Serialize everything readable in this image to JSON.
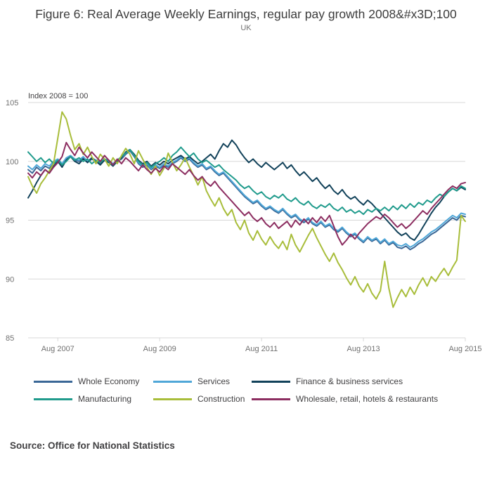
{
  "source": "Source: Office for National Statistics",
  "colors": {
    "grid": "#d8d8d8",
    "tick_text": "#707070",
    "note_text": "#414042"
  },
  "chart_data": {
    "type": "line",
    "title": "Figure 6: Real Average Weekly Earnings, regular pay growth 2008&#x3D;100",
    "subtitle": "UK",
    "unit_label": "Index 2008 = 100",
    "x_range": {
      "start": "Jan 2007",
      "end": "Aug 2015",
      "frequency": "monthly"
    },
    "x_tick_labels": [
      "Aug 2007",
      "Aug 2009",
      "Aug 2011",
      "Aug 2013",
      "Aug 2015"
    ],
    "x_tick_month_indices": [
      7,
      31,
      55,
      79,
      103
    ],
    "y_ticks": [
      85,
      90,
      95,
      100,
      105
    ],
    "ylim": [
      85,
      105
    ],
    "grid": "horizontal",
    "legend_position": "bottom",
    "series": [
      {
        "name": "Whole Economy",
        "color": "#3a6796",
        "values": [
          99.3,
          99.0,
          99.5,
          99.2,
          99.6,
          99.4,
          99.8,
          100.1,
          99.7,
          100.2,
          100.4,
          100.1,
          100.0,
          100.3,
          99.9,
          100.2,
          100.0,
          99.8,
          100.1,
          100.0,
          99.7,
          100.0,
          100.2,
          100.6,
          100.9,
          100.4,
          99.8,
          99.5,
          99.7,
          99.3,
          99.6,
          99.4,
          99.7,
          99.5,
          99.8,
          100.0,
          100.3,
          100.0,
          100.2,
          99.8,
          99.5,
          99.7,
          99.3,
          99.5,
          99.1,
          98.8,
          99.0,
          98.6,
          98.2,
          97.8,
          97.4,
          97.0,
          96.7,
          96.4,
          96.6,
          96.2,
          95.9,
          96.1,
          95.8,
          95.6,
          95.9,
          95.5,
          95.2,
          95.4,
          95.0,
          94.8,
          95.1,
          94.7,
          94.5,
          94.8,
          94.4,
          94.6,
          94.2,
          94.0,
          94.3,
          93.9,
          93.6,
          93.8,
          93.4,
          93.1,
          93.5,
          93.2,
          93.4,
          93.0,
          93.3,
          92.9,
          93.1,
          92.7,
          92.6,
          92.8,
          92.5,
          92.7,
          93.0,
          93.2,
          93.5,
          93.8,
          94.0,
          94.3,
          94.6,
          94.9,
          95.2,
          95.0,
          95.4,
          95.3
        ]
      },
      {
        "name": "Services",
        "color": "#4fa7d8",
        "values": [
          99.6,
          99.3,
          99.7,
          99.4,
          99.8,
          99.6,
          100.0,
          100.2,
          99.8,
          100.3,
          100.5,
          100.2,
          100.1,
          100.4,
          100.0,
          100.3,
          100.1,
          99.9,
          100.2,
          100.1,
          99.8,
          100.1,
          100.3,
          100.7,
          101.0,
          100.5,
          99.9,
          99.6,
          99.8,
          99.4,
          99.7,
          99.5,
          99.8,
          99.6,
          99.9,
          100.1,
          100.4,
          100.1,
          100.3,
          99.9,
          99.6,
          99.8,
          99.4,
          99.6,
          99.2,
          98.9,
          99.1,
          98.7,
          98.3,
          97.9,
          97.5,
          97.1,
          96.8,
          96.5,
          96.7,
          96.3,
          96.0,
          96.2,
          95.9,
          95.7,
          96.0,
          95.6,
          95.3,
          95.5,
          95.1,
          94.9,
          95.2,
          94.8,
          94.6,
          94.9,
          94.5,
          94.7,
          94.3,
          94.1,
          94.4,
          94.0,
          93.7,
          93.9,
          93.5,
          93.2,
          93.6,
          93.3,
          93.5,
          93.1,
          93.4,
          93.0,
          93.2,
          92.9,
          92.8,
          93.0,
          92.7,
          92.9,
          93.2,
          93.4,
          93.7,
          94.0,
          94.2,
          94.5,
          94.8,
          95.1,
          95.4,
          95.2,
          95.6,
          95.5
        ]
      },
      {
        "name": "Finance & business services",
        "color": "#12425a",
        "values": [
          96.9,
          97.5,
          98.2,
          98.8,
          99.3,
          99.0,
          99.6,
          100.0,
          99.5,
          100.1,
          100.4,
          100.0,
          99.8,
          100.2,
          99.9,
          100.3,
          100.0,
          99.7,
          100.1,
          99.9,
          99.6,
          100.0,
          100.3,
          100.8,
          101.0,
          100.6,
          100.1,
          99.8,
          100.0,
          99.6,
          99.9,
          99.7,
          100.0,
          99.8,
          100.1,
          100.3,
          100.5,
          100.2,
          100.4,
          100.1,
          99.8,
          100.0,
          100.3,
          100.6,
          100.2,
          100.9,
          101.5,
          101.2,
          101.8,
          101.4,
          100.8,
          100.3,
          99.9,
          100.2,
          99.8,
          99.5,
          99.9,
          99.6,
          99.3,
          99.6,
          99.9,
          99.4,
          99.7,
          99.2,
          98.8,
          99.1,
          98.7,
          98.3,
          98.6,
          98.1,
          97.7,
          98.0,
          97.5,
          97.2,
          97.6,
          97.1,
          96.8,
          97.0,
          96.6,
          96.3,
          96.7,
          96.4,
          96.0,
          95.6,
          95.2,
          94.8,
          94.4,
          94.0,
          93.7,
          93.9,
          93.5,
          93.3,
          93.8,
          94.4,
          95.0,
          95.6,
          96.1,
          96.5,
          97.0,
          97.4,
          97.7,
          97.5,
          97.8,
          97.6
        ]
      },
      {
        "name": "Manufacturing",
        "color": "#209b8c",
        "values": [
          100.8,
          100.4,
          100.0,
          100.3,
          99.9,
          100.2,
          99.8,
          100.1,
          99.7,
          100.0,
          100.4,
          100.1,
          100.3,
          100.0,
          100.2,
          99.8,
          100.1,
          99.9,
          100.2,
          100.0,
          99.7,
          100.1,
          100.4,
          100.7,
          101.0,
          100.5,
          100.0,
          99.7,
          99.9,
          99.5,
          99.8,
          100.0,
          100.3,
          100.0,
          100.5,
          100.8,
          101.2,
          100.8,
          100.4,
          100.7,
          100.2,
          99.9,
          100.1,
          99.8,
          99.5,
          99.7,
          99.3,
          99.0,
          98.7,
          98.4,
          98.0,
          97.7,
          97.9,
          97.5,
          97.2,
          97.4,
          97.0,
          96.8,
          97.1,
          96.9,
          97.2,
          96.8,
          96.6,
          96.9,
          96.5,
          96.3,
          96.6,
          96.2,
          96.0,
          96.3,
          96.1,
          96.4,
          96.0,
          95.8,
          96.1,
          95.7,
          95.9,
          95.6,
          95.8,
          95.5,
          95.9,
          95.7,
          96.0,
          95.8,
          96.1,
          95.8,
          96.2,
          95.9,
          96.3,
          96.0,
          96.4,
          96.1,
          96.5,
          96.3,
          96.7,
          96.5,
          96.9,
          97.2,
          97.0,
          97.4,
          97.7,
          97.5,
          97.9,
          97.7
        ]
      },
      {
        "name": "Construction",
        "color": "#a8bd3a",
        "values": [
          98.7,
          97.9,
          97.3,
          98.1,
          98.6,
          99.2,
          99.8,
          102.0,
          104.2,
          103.6,
          102.2,
          101.0,
          101.5,
          100.6,
          101.2,
          100.4,
          99.8,
          100.6,
          100.2,
          99.6,
          100.3,
          99.8,
          100.5,
          101.1,
          100.6,
          99.8,
          100.9,
          100.2,
          99.5,
          98.9,
          99.6,
          98.8,
          99.4,
          100.7,
          99.9,
          99.2,
          99.7,
          100.3,
          99.5,
          98.8,
          98.0,
          98.7,
          97.5,
          96.8,
          96.2,
          96.9,
          96.0,
          95.4,
          95.9,
          94.8,
          94.2,
          95.0,
          93.9,
          93.3,
          94.1,
          93.4,
          92.9,
          93.6,
          93.0,
          92.6,
          93.2,
          92.5,
          93.8,
          92.9,
          92.3,
          93.0,
          93.7,
          94.3,
          93.5,
          92.8,
          92.1,
          91.5,
          92.2,
          91.4,
          90.8,
          90.1,
          89.5,
          90.2,
          89.4,
          88.9,
          89.6,
          88.8,
          88.3,
          89.0,
          91.5,
          89.2,
          87.6,
          88.4,
          89.1,
          88.5,
          89.3,
          88.7,
          89.5,
          90.1,
          89.4,
          90.2,
          89.8,
          90.4,
          90.9,
          90.3,
          91.0,
          91.6,
          95.4,
          94.9
        ]
      },
      {
        "name": "Wholesale, retail, hotels & restaurants",
        "color": "#8c2d60",
        "values": [
          99.0,
          98.6,
          99.1,
          98.8,
          99.3,
          99.0,
          99.5,
          99.9,
          100.4,
          101.6,
          101.0,
          100.5,
          101.2,
          100.7,
          100.3,
          100.8,
          100.4,
          100.0,
          100.5,
          100.1,
          99.7,
          100.2,
          99.8,
          100.3,
          100.0,
          99.6,
          99.2,
          99.7,
          99.3,
          99.0,
          99.4,
          99.1,
          99.6,
          99.3,
          99.8,
          99.5,
          99.2,
          98.9,
          99.3,
          98.8,
          98.4,
          98.7,
          98.2,
          97.9,
          98.3,
          97.8,
          97.4,
          97.0,
          96.6,
          96.2,
          95.8,
          95.4,
          95.7,
          95.2,
          94.9,
          95.2,
          94.7,
          94.4,
          94.8,
          94.3,
          94.6,
          94.9,
          94.4,
          95.0,
          94.6,
          95.1,
          94.7,
          95.2,
          94.8,
          95.3,
          94.9,
          95.4,
          94.5,
          93.6,
          92.9,
          93.3,
          93.8,
          93.4,
          93.9,
          94.3,
          94.7,
          95.0,
          95.3,
          95.1,
          95.5,
          95.2,
          94.8,
          94.4,
          94.7,
          94.3,
          94.6,
          95.0,
          95.4,
          95.8,
          95.5,
          96.0,
          96.4,
          96.8,
          97.2,
          97.6,
          97.9,
          97.7,
          98.1,
          98.2
        ]
      }
    ]
  }
}
